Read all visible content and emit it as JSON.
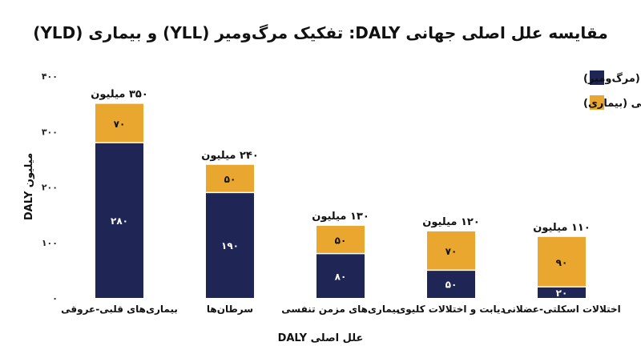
{
  "chart_data": {
    "type": "bar",
    "stacked": true,
    "title": "مقایسه علل اصلی جهانی DALY: تفکیک مرگ‌ومیر (YLL) و بیماری (YLD)",
    "xlabel": "علل اصلی DALY",
    "ylabel": "DALY میلیون",
    "ylim": [
      0,
      400
    ],
    "yticks": [
      "۰",
      "۱۰۰",
      "۲۰۰",
      "۳۰۰",
      "۴۰۰"
    ],
    "ytick_values": [
      0,
      100,
      200,
      300,
      400
    ],
    "grid": false,
    "legend_position": "top-right",
    "categories": [
      "بیماری‌های قلبی-عروقی",
      "سرطان‌ها",
      "بیماری‌های مزمن تنفسی",
      "دیابت و اختلالات کلیوی",
      "اختلالات اسکلتی-عضلانی"
    ],
    "series": [
      {
        "name": "YLL: سال‌های از دست رفته عمر (مرگ‌ومیر)",
        "color": "#1f2656",
        "label_color": "#ffffff",
        "values": [
          280,
          190,
          80,
          50,
          20
        ],
        "labels": [
          "۲۸۰",
          "۱۹۰",
          "۸۰",
          "۵۰",
          "۲۰"
        ]
      },
      {
        "name": "YLD: سال‌های زندگی با ناتوانی (بیماری)",
        "color": "#e9a730",
        "label_color": "#111111",
        "values": [
          70,
          50,
          50,
          70,
          90
        ],
        "labels": [
          "۷۰",
          "۵۰",
          "۵۰",
          "۷۰",
          "۹۰"
        ]
      }
    ],
    "totals": [
      350,
      240,
      130,
      120,
      110
    ],
    "total_labels": [
      "۳۵۰ میلیون",
      "۲۴۰ میلیون",
      "۱۳۰ میلیون",
      "۱۲۰ میلیون",
      "۱۱۰ میلیون"
    ]
  }
}
